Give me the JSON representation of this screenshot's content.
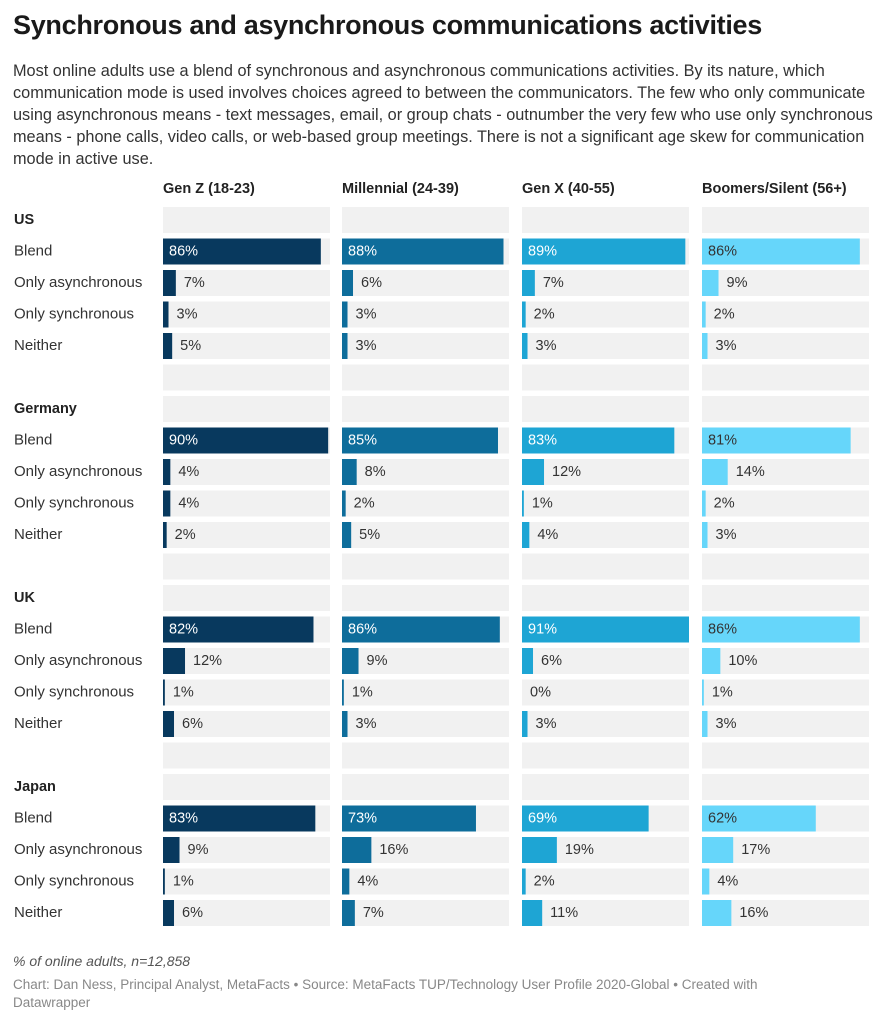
{
  "header": {
    "title": "Synchronous and asynchronous communications activities",
    "description": "Most online adults use a blend of synchronous and asynchronous communications activities. By its nature, which communication mode is used involves choices agreed to between the communicators. The few who only communicate using asynchronous means - text messages, email, or group chats - outnumber the very few who use only synchronous means - phone calls, video calls, or web-based group meetings. There is not a significant age skew for communication mode in active use."
  },
  "footer": {
    "note": "% of online adults, n=12,858",
    "credit": "Chart: Dan Ness, Principal Analyst, MetaFacts • Source: MetaFacts TUP/Technology User Profile 2020-Global • Created with Datawrapper"
  },
  "chart_data": {
    "type": "bar",
    "orientation": "horizontal",
    "columns": [
      "Gen Z (18-23)",
      "Millennial (24-39)",
      "Gen X (40-55)",
      "Boomers/Silent (56+)"
    ],
    "column_colors": [
      "#08395e",
      "#0e6d9b",
      "#1ea5d4",
      "#66d6fa"
    ],
    "categories": [
      "Blend",
      "Only asynchronous",
      "Only synchronous",
      "Neither"
    ],
    "value_suffix": "%",
    "xlim": [
      0,
      91
    ],
    "groups": [
      {
        "name": "US",
        "values": [
          [
            86,
            88,
            89,
            86
          ],
          [
            7,
            6,
            7,
            9
          ],
          [
            3,
            3,
            2,
            2
          ],
          [
            5,
            3,
            3,
            3
          ]
        ]
      },
      {
        "name": "Germany",
        "values": [
          [
            90,
            85,
            83,
            81
          ],
          [
            4,
            8,
            12,
            14
          ],
          [
            4,
            2,
            1,
            2
          ],
          [
            2,
            5,
            4,
            3
          ]
        ]
      },
      {
        "name": "UK",
        "values": [
          [
            82,
            86,
            91,
            86
          ],
          [
            12,
            9,
            6,
            10
          ],
          [
            1,
            1,
            0,
            1
          ],
          [
            6,
            3,
            3,
            3
          ]
        ]
      },
      {
        "name": "Japan",
        "values": [
          [
            83,
            73,
            69,
            62
          ],
          [
            9,
            16,
            19,
            17
          ],
          [
            1,
            4,
            2,
            4
          ],
          [
            6,
            7,
            11,
            16
          ]
        ]
      }
    ]
  }
}
